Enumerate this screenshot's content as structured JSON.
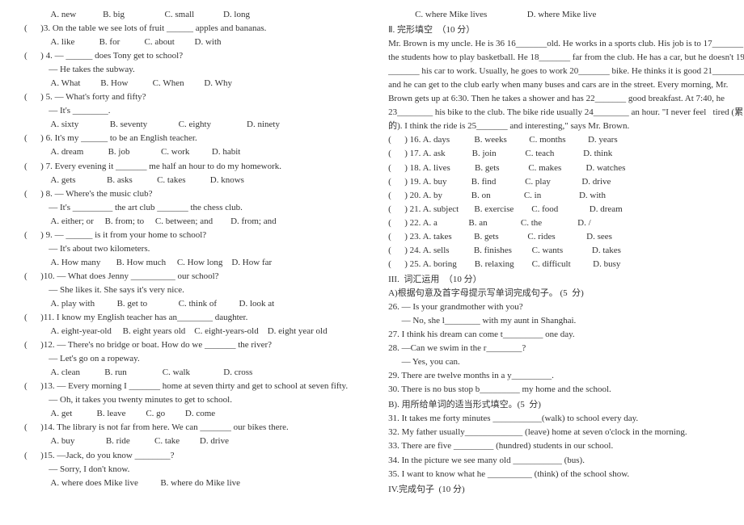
{
  "page": {
    "background_color": "#ffffff",
    "text_color": "#333333",
    "font_family": "Times New Roman",
    "font_size": 11,
    "line_height": 1.55
  },
  "left": {
    "q2opts": "            A. new            B. big                  C. small             D. long",
    "q3": "(      )3. On the table we see lots of fruit ______ apples and bananas.",
    "q3opts": "            A. like           B. for           C. about         D. with",
    "q4": "(      ) 4. — ______ does Tony get to school?",
    "q4b": "           — He takes the subway.",
    "q4opts": "            A. What         B. How           C. When         D. Why",
    "q5": "(      ) 5. — What's forty and fifty?",
    "q5b": "           — It's ________.",
    "q5opts": "            A. sixty              B. seventy              C. eighty                D. ninety",
    "q6": "(      ) 6. It's my ______ to be an English teacher.",
    "q6opts": "            A. dream           B. job              C. work          D. habit",
    "q7": "(      ) 7. Every evening it _______ me half an hour to do my homework.",
    "q7opts": "            A. gets              B. asks           C. takes           D. knows",
    "q8": "(      ) 8. — Where's the music club?",
    "q8b": "           — It's _________ the art club _______ the chess club.",
    "q8opts": "            A. either; or     B. from; to     C. between; and        D. from; and",
    "q9": "(      ) 9. — ______ is it from your home to school?",
    "q9b": "           — It's about two kilometers.",
    "q9opts": "            A. How many       B. How much     C. How long    D. How far",
    "q10": "(      )10. — What does Jenny __________ our school?",
    "q10b": "           — She likes it. She says it's very nice.",
    "q10opts": "            A. play with          B. get to              C. think of          D. look at",
    "q11": "(      )11. I know my English teacher has an________ daughter.",
    "q11opts": "            A. eight-year-old     B. eight years old    C. eight-years-old    D. eight year old",
    "q12": "(      )12. — There's no bridge or boat. How do we _______ the river?",
    "q12b": "           — Let's go on a ropeway.",
    "q12opts": "            A. clean           B. run                C. walk               D. cross",
    "q13": "(      )13. — Every morning I _______ home at seven thirty and get to school at seven fifty.",
    "q13b": "           — Oh, it takes you twenty minutes to get to school.",
    "q13opts": "            A. get           B. leave         C. go         D. come",
    "q14": "(      )14. The library is not far from here. We can _______ our bikes there.",
    "q14opts": "            A. buy              B. ride           C. take         D. drive",
    "q15": "(      )15. —Jack, do you know ________?",
    "q15b": "           — Sorry, I don't know.",
    "q15opts": "            A. where does Mike live          B. where do Mike live"
  },
  "right": {
    "q15opts2": "            C. where Mike lives                  D. where Mike live",
    "sec2": "Ⅱ. 完形填空  （10 分）",
    "p1": "Mr. Brown is my uncle. He is 36 16_______old. He works in a sports club. His job is to 17_______",
    "p2": "the students how to play basketball. He 18_______ far from the club. He has a car, but he doesn't 19",
    "p3": "_______ his car to work. Usually, he goes to work 20_______ bike. He thinks it is good 21________",
    "p4": "and he can get to the club early when many buses and cars are in the street. Every morning, Mr.",
    "p5": "Brown gets up at 6:30. Then he takes a shower and has 22_______ good breakfast. At 7:40, he",
    "p6": "23________ his bike to the club. The bike ride usually 24________ an hour. \"I never feel   tired (累",
    "p7": "的). I think the ride is 25_______ and interesting,\" says Mr. Brown.",
    "o16": "(      ) 16. A. days           B. weeks          C. months          D. years",
    "o17": "(      ) 17. A. ask            B. join             C. teach             D. think",
    "o18": "(      ) 18. A. lives           B. gets             C. makes           D. watches",
    "o19": "(      ) 19. A. buy           B. find             C. play              D. drive",
    "o20": "(      ) 20. A. by             B. on               C. in                 D. with",
    "o21": "(      ) 21. A. subject       B. exercise        C. food              D. dream",
    "o22": "(      ) 22. A. a              B. an               C. the                D. /",
    "o23": "(      ) 23. A. takes          B. gets             C. rides              D. sees",
    "o24": "(      ) 24. A. sells           B. finishes         C. wants             D. takes",
    "o25": "(      ) 25. A. boring        B. relaxing        C. difficult          D. busy",
    "sec3": "III.  词汇运用  （10 分）",
    "sec3a": "A)根据句意及首字母提示写单词完成句子。 (5  分)",
    "a26": "26. — Is your grandmother with you?",
    "a26b": "      — No, she l________ with my aunt in Shanghai.",
    "a27": "27. I think his dream can come t_________ one day.",
    "a28": "28. —Can we swim in the r________?",
    "a28b": "      — Yes, you can.",
    "a29": "29. There are twelve months in a y_________.",
    "a30": "30. There is no bus stop b_________ my home and the school.",
    "sec3b": "B). 用所给单词的适当形式填空。(5  分)",
    "b31": "31. It takes me forty minutes ___________(walk) to school every day.",
    "b32": "32. My father usually_____________ (leave) home at seven o'clock in the morning.",
    "b33": "33. There are five _________ (hundred) students in our school.",
    "b34": "34. In the picture we see many old ___________ (bus).",
    "b35": "35. I want to know what he __________ (think) of the school show.",
    "sec4": "IV.完成句子  (10 分)"
  }
}
